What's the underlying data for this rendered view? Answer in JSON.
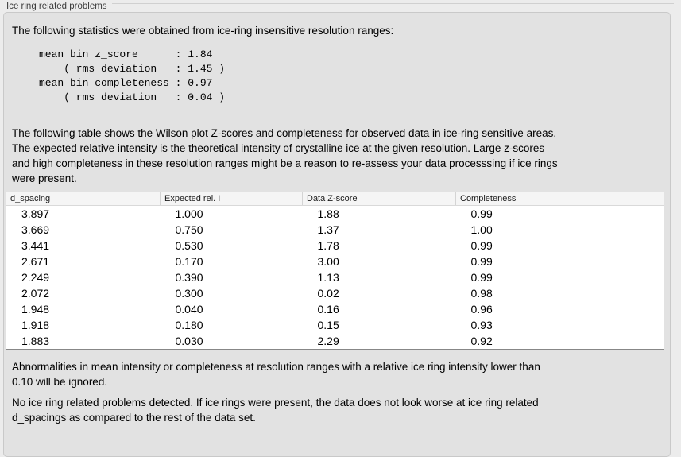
{
  "panel": {
    "title": "Ice ring related problems"
  },
  "intro": "The following statistics were obtained from ice-ring insensitive resolution ranges:",
  "stats_block": "mean bin z_score      : 1.84\n    ( rms deviation   : 1.45 )\nmean bin completeness : 0.97\n    ( rms deviation   : 0.04 )",
  "table_description": "The following table shows the Wilson plot Z-scores and completeness for observed data in ice-ring sensitive areas.\nThe expected relative intensity is the theoretical intensity of crystalline ice at the given resolution. Large z-scores\nand high completeness in these resolution ranges might be a reason to re-assess your data processsing if ice rings\nwere present.",
  "table": {
    "columns": [
      "d_spacing",
      "Expected rel. I",
      "Data Z-score",
      "Completeness",
      ""
    ],
    "rows": [
      [
        "3.897",
        "1.000",
        "1.88",
        "0.99"
      ],
      [
        "3.669",
        "0.750",
        "1.37",
        "1.00"
      ],
      [
        "3.441",
        "0.530",
        "1.78",
        "0.99"
      ],
      [
        "2.671",
        "0.170",
        "3.00",
        "0.99"
      ],
      [
        "2.249",
        "0.390",
        "1.13",
        "0.99"
      ],
      [
        "2.072",
        "0.300",
        "0.02",
        "0.98"
      ],
      [
        "1.948",
        "0.040",
        "0.16",
        "0.96"
      ],
      [
        "1.918",
        "0.180",
        "0.15",
        "0.93"
      ],
      [
        "1.883",
        "0.030",
        "2.29",
        "0.92"
      ]
    ]
  },
  "ignore_note": "Abnormalities in mean intensity or completeness at resolution ranges with a relative ice ring intensity lower than\n0.10 will be ignored.",
  "conclusion": "No ice ring related problems detected. If ice rings were present, the data does not look worse at ice ring related\nd_spacings as compared to the rest of the data set."
}
